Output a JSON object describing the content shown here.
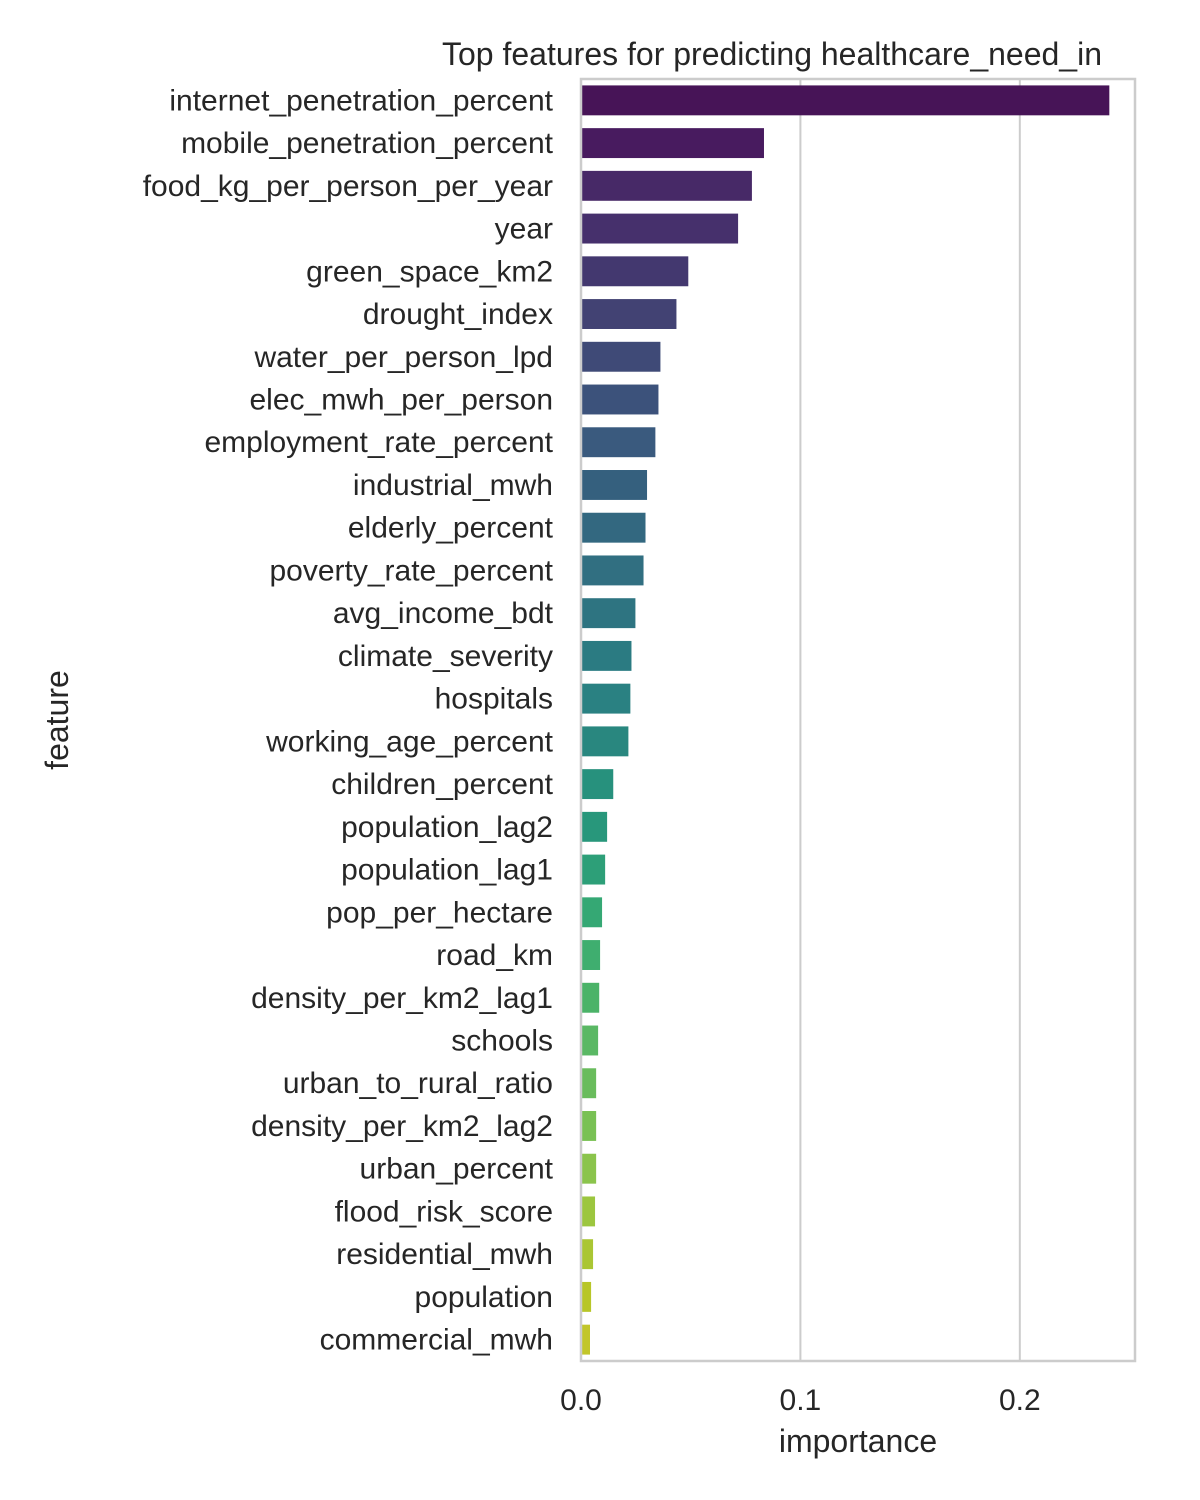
{
  "chart_data": {
    "type": "bar",
    "orientation": "horizontal",
    "title": "Top features for predicting healthcare_need_in",
    "xlabel": "importance",
    "ylabel": "feature",
    "xlim": [
      0,
      0.2525
    ],
    "xticks": [
      0.0,
      0.1,
      0.2
    ],
    "xtick_labels": [
      "0.0",
      "0.1",
      "0.2"
    ],
    "grid": "x",
    "palette": "viridis",
    "categories": [
      "internet_penetration_percent",
      "mobile_penetration_percent",
      "food_kg_per_person_per_year",
      "year",
      "green_space_km2",
      "drought_index",
      "water_per_person_lpd",
      "elec_mwh_per_person",
      "employment_rate_percent",
      "industrial_mwh",
      "elderly_percent",
      "poverty_rate_percent",
      "avg_income_bdt",
      "climate_severity",
      "hospitals",
      "working_age_percent",
      "children_percent",
      "population_lag2",
      "population_lag1",
      "pop_per_hectare",
      "road_km",
      "density_per_km2_lag1",
      "schools",
      "urban_to_rural_ratio",
      "density_per_km2_lag2",
      "urban_percent",
      "flood_risk_score",
      "residential_mwh",
      "population",
      "commercial_mwh"
    ],
    "values": [
      0.2408,
      0.0834,
      0.0779,
      0.0716,
      0.0489,
      0.0435,
      0.0362,
      0.0353,
      0.0339,
      0.0301,
      0.0294,
      0.0285,
      0.0248,
      0.023,
      0.0225,
      0.0216,
      0.0147,
      0.0119,
      0.011,
      0.0096,
      0.0087,
      0.0083,
      0.0078,
      0.0069,
      0.0069,
      0.0069,
      0.0064,
      0.0055,
      0.0046,
      0.0041
    ],
    "colors": [
      "#471457",
      "#481b5f",
      "#472967",
      "#46306c",
      "#43386f",
      "#424273",
      "#3f4a77",
      "#3c527b",
      "#3a5a7e",
      "#35607e",
      "#336880",
      "#316f81",
      "#2e7481",
      "#2b7b82",
      "#2a8182",
      "#29877f",
      "#27917d",
      "#28977b",
      "#2d9f78",
      "#35a874",
      "#3fae6f",
      "#4bb368",
      "#5ab864",
      "#69bc5c",
      "#79c154",
      "#8bc44c",
      "#9cc63f",
      "#aac633",
      "#b8c628",
      "#c2c62a"
    ]
  }
}
